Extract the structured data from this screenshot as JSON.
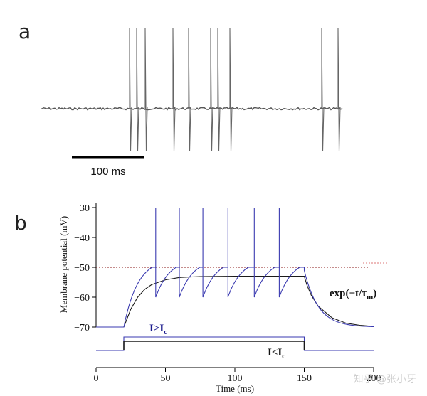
{
  "panels": {
    "a_label": "a",
    "b_label": "b"
  },
  "panel_a": {
    "scale_bar_label": "100 ms"
  },
  "chart_data": {
    "type": "line",
    "x": [
      0,
      20,
      25,
      30,
      35,
      40,
      50,
      60,
      75,
      100,
      125,
      149,
      150,
      152,
      155,
      160,
      170,
      180,
      190,
      200
    ],
    "series": [
      {
        "values": [
          -70,
          -70,
          -64.0,
          -60.0,
          -57.4,
          -55.8,
          -54.2,
          -53.4,
          -53.1,
          -53.0,
          -53.0,
          -53.0,
          -53.0,
          -56.0,
          -59.3,
          -63.0,
          -66.9,
          -68.7,
          -69.4,
          -69.8
        ]
      },
      {
        "values": [
          -70,
          -70,
          -64.0,
          -57.5,
          -54.0,
          -51.0,
          -58.5,
          -56.5,
          -55.5,
          -56.0,
          -55.5,
          -51.0,
          -53.0,
          -56.5,
          -59.5,
          -63.5,
          -67.2,
          -68.9,
          -69.5,
          -69.8
        ],
        "spike_times": [
          43,
          60,
          77,
          95,
          114,
          132
        ],
        "spike_peak": -30,
        "reset_level": -60
      }
    ],
    "threshold": -50,
    "stimulus_on": 20,
    "stimulus_off": 150,
    "xlabel": "Time (ms)",
    "ylabel": "Membrane potential (mV)",
    "xlim": [
      0,
      200
    ],
    "ylim": [
      -70,
      -30
    ],
    "xticks": [
      "0",
      "50",
      "100",
      "150",
      "200"
    ],
    "yticks": [
      "−30",
      "−40",
      "−50",
      "−60",
      "−70"
    ],
    "labels": {
      "supra": "I>I",
      "supra_sub": "c",
      "sub": "I<I",
      "sub_sub": "c",
      "decay": "exp(−t/τ",
      "decay_sub": "m",
      "decay_end": ")"
    },
    "colors": {
      "spiking": "#3a3ab0",
      "subthreshold": "#1a1a1a",
      "threshold": "#8b1a1a"
    }
  },
  "watermark": "知乎 @张小牙"
}
